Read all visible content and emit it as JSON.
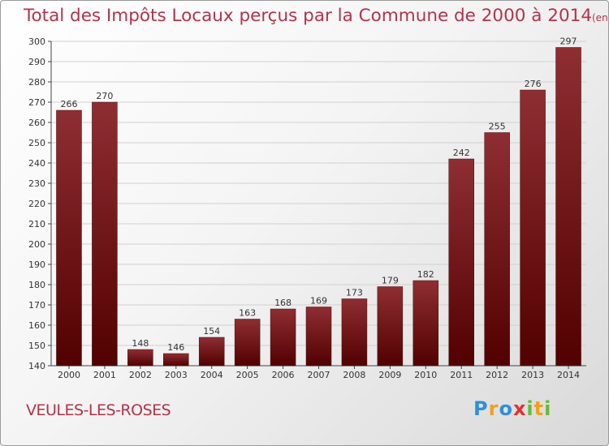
{
  "title": "Total des Impôts Locaux perçus par la Commune de 2000 à 2014",
  "unit_label": "(en milliers d'€)",
  "commune": "VEULES-LES-ROSES",
  "logo": {
    "text": "Proxiti",
    "letters": [
      "P",
      "r",
      "o",
      "x",
      "i",
      "t",
      "i"
    ],
    "colors": [
      "#2f8fd8",
      "#f0a020",
      "#2f8fd8",
      "#e03030",
      "#69b83a",
      "#f0a020",
      "#69b83a"
    ]
  },
  "colors": {
    "bar": "#7a1f25",
    "title": "#b5324a",
    "grid": "#d0d0d0"
  },
  "chart_data": {
    "type": "bar",
    "title": "Total des Impôts Locaux perçus par la Commune de 2000 à 2014",
    "ylabel": "(en milliers d'€)",
    "xlabel": "",
    "categories": [
      "2000",
      "2001",
      "2002",
      "2003",
      "2004",
      "2005",
      "2006",
      "2007",
      "2008",
      "2009",
      "2010",
      "2011",
      "2012",
      "2013",
      "2014"
    ],
    "values": [
      266,
      270,
      148,
      146,
      154,
      163,
      168,
      169,
      173,
      179,
      182,
      242,
      255,
      276,
      297
    ],
    "ylim": [
      140,
      300
    ],
    "yticks": [
      140,
      150,
      160,
      170,
      180,
      190,
      200,
      210,
      220,
      230,
      240,
      250,
      260,
      270,
      280,
      290,
      300
    ],
    "grid": true
  }
}
